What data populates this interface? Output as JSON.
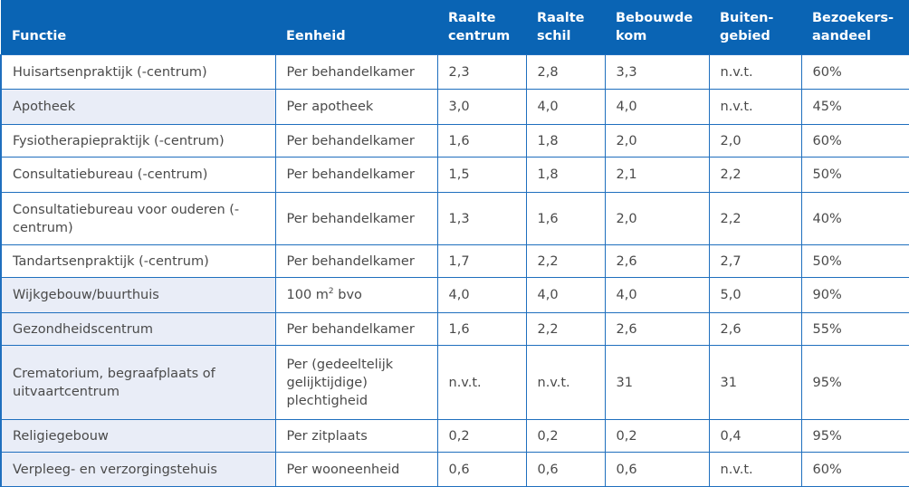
{
  "colors": {
    "header_bg": "#0a64b4",
    "border": "#1f6fbe",
    "shaded_cell": "#e9edf7"
  },
  "headers": [
    "Functie",
    "Eenheid",
    "Raalte centrum",
    "Raalte schil",
    "Bebouwde kom",
    "Buiten-gebied",
    "Bezoekers-aandeel"
  ],
  "header_lines": [
    [
      "Functie"
    ],
    [
      "Eenheid"
    ],
    [
      "Raalte",
      "centrum"
    ],
    [
      "Raalte",
      "schil"
    ],
    [
      "Bebouwde",
      "kom"
    ],
    [
      "Buiten-",
      "gebied"
    ],
    [
      "Bezoekers-",
      "aandeel"
    ]
  ],
  "rows": [
    {
      "shaded": false,
      "cells": [
        "Huisartsenpraktijk (-centrum)",
        "Per behandelkamer",
        "2,3",
        "2,8",
        "3,3",
        "n.v.t.",
        "60%"
      ]
    },
    {
      "shaded": true,
      "cells": [
        "Apotheek",
        "Per apotheek",
        "3,0",
        "4,0",
        "4,0",
        "n.v.t.",
        "45%"
      ]
    },
    {
      "shaded": false,
      "cells": [
        "Fysiotherapiepraktijk (-centrum)",
        "Per behandelkamer",
        "1,6",
        "1,8",
        "2,0",
        "2,0",
        "60%"
      ]
    },
    {
      "shaded": false,
      "cells": [
        "Consultatiebureau (-centrum)",
        "Per behandelkamer",
        "1,5",
        "1,8",
        "2,1",
        "2,2",
        "50%"
      ]
    },
    {
      "shaded": false,
      "cells": [
        "Consultatiebureau voor ouderen (-centrum)",
        "Per behandelkamer",
        "1,3",
        "1,6",
        "2,0",
        "2,2",
        "40%"
      ]
    },
    {
      "shaded": false,
      "cells": [
        "Tandartsenpraktijk (-centrum)",
        "Per behandelkamer",
        "1,7",
        "2,2",
        "2,6",
        "2,7",
        "50%"
      ]
    },
    {
      "shaded": true,
      "cells": [
        "Wijkgebouw/buurthuis",
        "100 m² bvo",
        "4,0",
        "4,0",
        "4,0",
        "5,0",
        "90%"
      ]
    },
    {
      "shaded": true,
      "cells": [
        "Gezondheidscentrum",
        "Per behandelkamer",
        "1,6",
        "2,2",
        "2,6",
        "2,6",
        "55%"
      ]
    },
    {
      "shaded": true,
      "cells": [
        "Crematorium, begraafplaats of uitvaartcentrum",
        "Per (gedeeltelijk gelijktijdige) plechtigheid",
        "n.v.t.",
        "n.v.t.",
        "31",
        "31",
        "95%"
      ]
    },
    {
      "shaded": true,
      "cells": [
        "Religiegebouw",
        "Per zitplaats",
        "0,2",
        "0,2",
        "0,2",
        "0,4",
        "95%"
      ]
    },
    {
      "shaded": true,
      "cells": [
        "Verpleeg- en verzorgingstehuis",
        "Per wooneenheid",
        "0,6",
        "0,6",
        "0,6",
        "n.v.t.",
        "60%"
      ]
    }
  ]
}
